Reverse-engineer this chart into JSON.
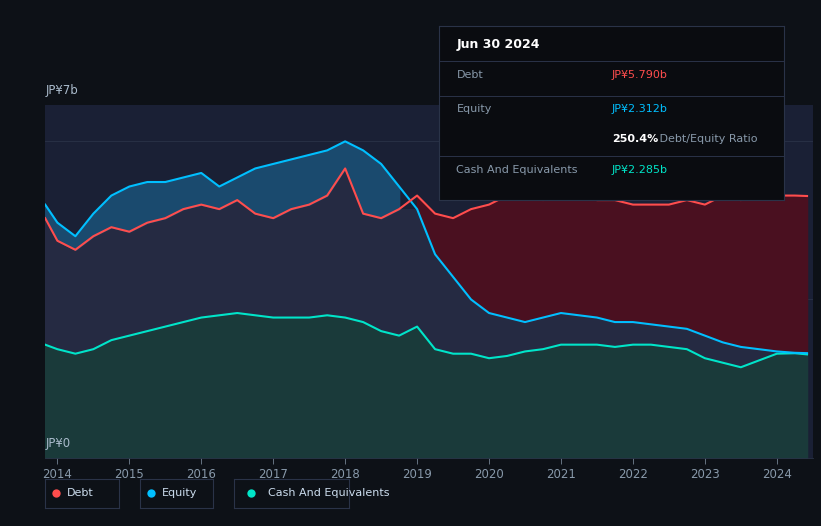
{
  "bg_color": "#0d1117",
  "chart_area_color": "#1a2035",
  "title_date": "Jun 30 2024",
  "tooltip": {
    "debt_label": "Debt",
    "debt_value": "JP¥5.790b",
    "debt_color": "#ff4d4d",
    "equity_label": "Equity",
    "equity_value": "JP¥2.312b",
    "equity_color": "#00bfff",
    "ratio_bold": "250.4%",
    "ratio_rest": " Debt/Equity Ratio",
    "cash_label": "Cash And Equivalents",
    "cash_value": "JP¥2.285b",
    "cash_color": "#00e5c8"
  },
  "ylabel_top": "JP¥7b",
  "ylabel_bottom": "JP¥0",
  "x_ticks": [
    2014,
    2015,
    2016,
    2017,
    2018,
    2019,
    2020,
    2021,
    2022,
    2023,
    2024
  ],
  "legend": [
    {
      "label": "Debt",
      "color": "#ff4d4d"
    },
    {
      "label": "Equity",
      "color": "#00bfff"
    },
    {
      "label": "Cash And Equivalents",
      "color": "#00e5c8"
    }
  ],
  "debt_color": "#ff4d4d",
  "equity_color": "#00bfff",
  "cash_color": "#00e5c8",
  "equity_fill_color": "#1a4a6e",
  "debt_fill_color": "#4a1020",
  "mid_fill_color": "#252a42",
  "cash_fill_color": "#1a3a3a",
  "years": [
    2013.83,
    2014.0,
    2014.25,
    2014.5,
    2014.75,
    2015.0,
    2015.25,
    2015.5,
    2015.75,
    2016.0,
    2016.25,
    2016.5,
    2016.75,
    2017.0,
    2017.25,
    2017.5,
    2017.75,
    2018.0,
    2018.25,
    2018.5,
    2018.75,
    2019.0,
    2019.25,
    2019.5,
    2019.75,
    2020.0,
    2020.25,
    2020.5,
    2020.75,
    2021.0,
    2021.25,
    2021.5,
    2021.75,
    2022.0,
    2022.25,
    2022.5,
    2022.75,
    2023.0,
    2023.25,
    2023.5,
    2023.75,
    2024.0,
    2024.25,
    2024.42
  ],
  "debt": [
    5.3,
    4.8,
    4.6,
    4.9,
    5.1,
    5.0,
    5.2,
    5.3,
    5.5,
    5.6,
    5.5,
    5.7,
    5.4,
    5.3,
    5.5,
    5.6,
    5.8,
    6.4,
    5.4,
    5.3,
    5.5,
    5.8,
    5.4,
    5.3,
    5.5,
    5.6,
    5.8,
    5.9,
    5.7,
    6.2,
    5.8,
    5.7,
    5.7,
    5.6,
    5.6,
    5.6,
    5.7,
    5.6,
    5.8,
    5.7,
    5.8,
    5.8,
    5.8,
    5.79
  ],
  "equity": [
    5.6,
    5.2,
    4.9,
    5.4,
    5.8,
    6.0,
    6.1,
    6.1,
    6.2,
    6.3,
    6.0,
    6.2,
    6.4,
    6.5,
    6.6,
    6.7,
    6.8,
    7.0,
    6.8,
    6.5,
    6.0,
    5.5,
    4.5,
    4.0,
    3.5,
    3.2,
    3.1,
    3.0,
    3.1,
    3.2,
    3.15,
    3.1,
    3.0,
    3.0,
    2.95,
    2.9,
    2.85,
    2.7,
    2.55,
    2.45,
    2.4,
    2.35,
    2.32,
    2.312
  ],
  "cash": [
    2.5,
    2.4,
    2.3,
    2.4,
    2.6,
    2.7,
    2.8,
    2.9,
    3.0,
    3.1,
    3.15,
    3.2,
    3.15,
    3.1,
    3.1,
    3.1,
    3.15,
    3.1,
    3.0,
    2.8,
    2.7,
    2.9,
    2.4,
    2.3,
    2.3,
    2.2,
    2.25,
    2.35,
    2.4,
    2.5,
    2.5,
    2.5,
    2.45,
    2.5,
    2.5,
    2.45,
    2.4,
    2.2,
    2.1,
    2.0,
    2.15,
    2.3,
    2.31,
    2.285
  ]
}
